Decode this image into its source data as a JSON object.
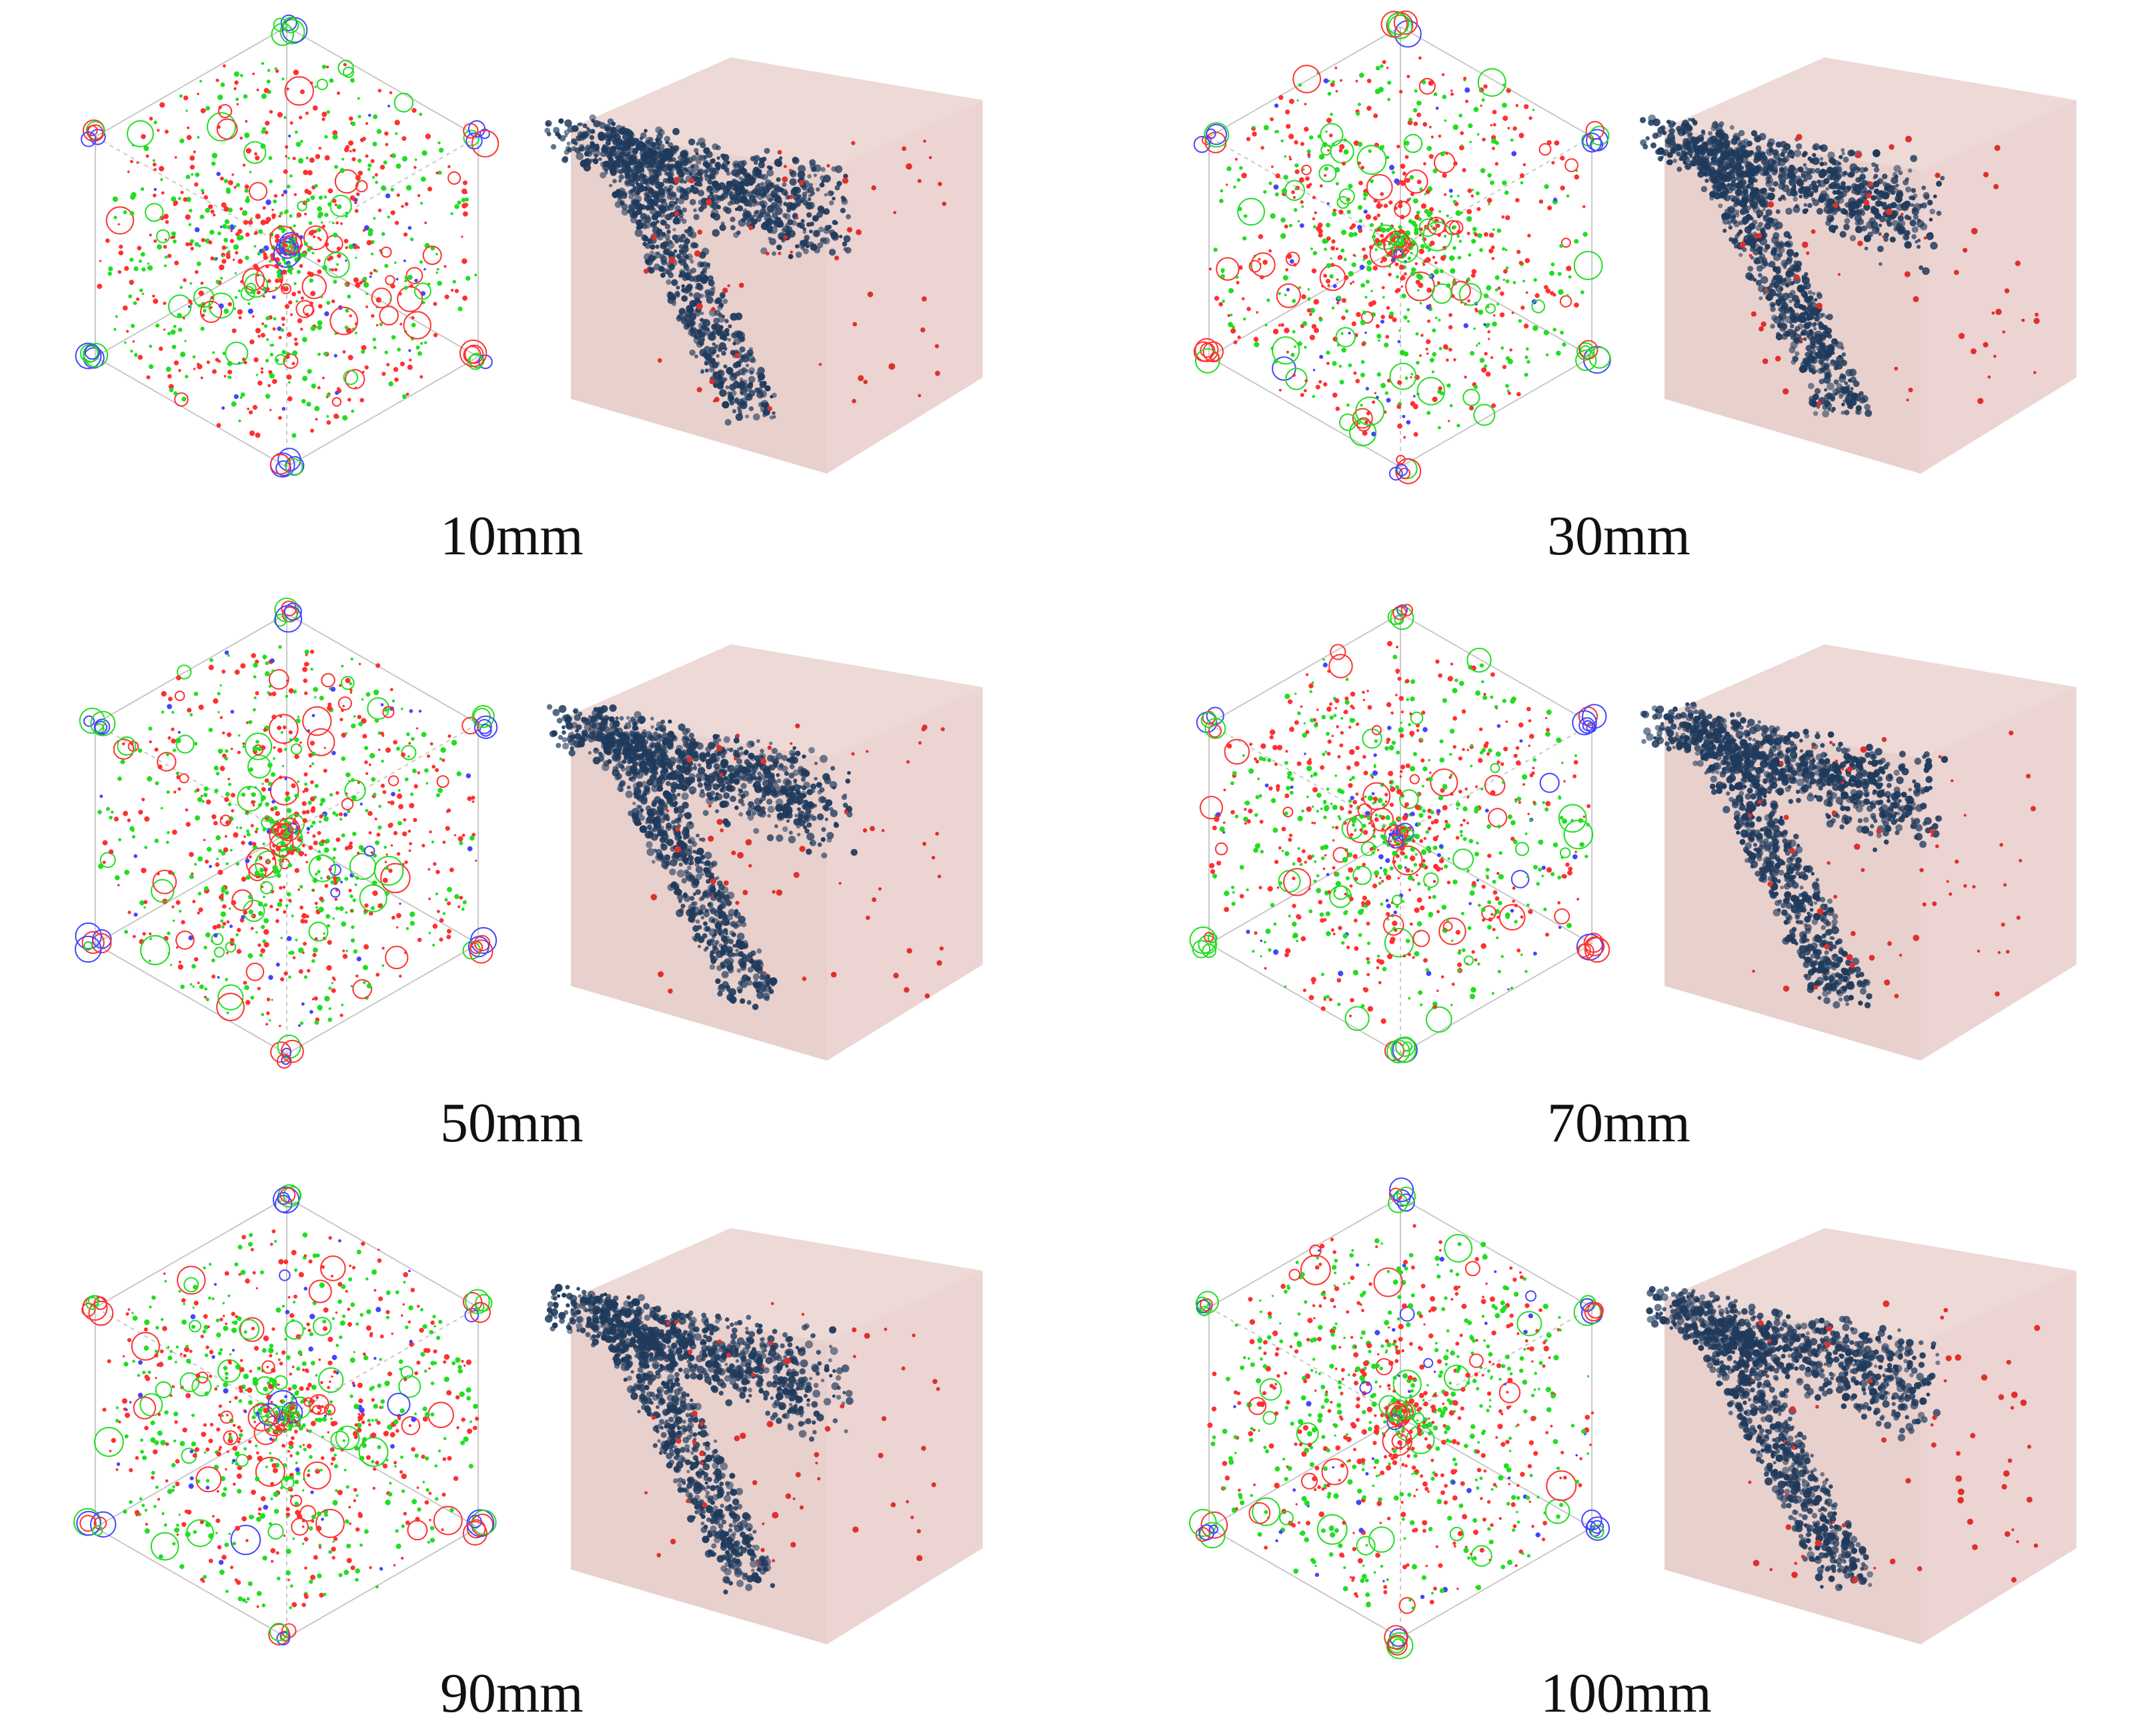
{
  "colors": {
    "crack_tension": "#ff3030",
    "crack_shear": "#22dd22",
    "crack_mixed": "#4444ff",
    "cube_edge": "#c8c8c8",
    "particle_base": "#e7cdca",
    "particle_damaged": "#1f3a5c",
    "particle_broken": "#e0302a"
  },
  "figure": {
    "panels": [
      {
        "label": "10mm"
      },
      {
        "label": "30mm"
      },
      {
        "label": "50mm"
      },
      {
        "label": "70mm"
      },
      {
        "label": "90mm"
      },
      {
        "label": "100mm"
      }
    ]
  }
}
